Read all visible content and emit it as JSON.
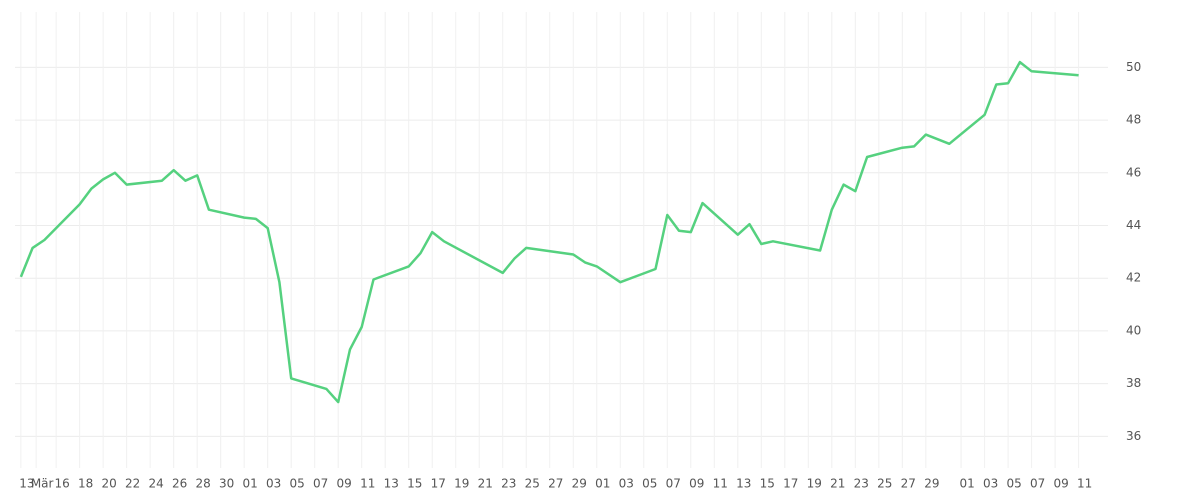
{
  "chart_data": {
    "type": "line",
    "x": [
      0,
      1,
      2,
      5,
      6,
      7,
      8,
      9,
      12,
      13,
      14,
      15,
      16,
      19,
      20,
      21,
      22,
      23,
      26,
      27,
      28,
      29,
      30,
      33,
      34,
      35,
      36,
      41,
      42,
      43,
      47,
      48,
      49,
      51,
      54,
      55,
      56,
      57,
      58,
      61,
      62,
      63,
      64,
      68,
      69,
      70,
      71,
      72,
      75,
      76,
      77,
      79,
      82,
      83,
      84,
      85,
      86,
      90
    ],
    "series": [
      {
        "color": "#55d17f",
        "values": [
          42.05,
          43.15,
          43.45,
          44.8,
          45.4,
          45.75,
          46.0,
          45.55,
          45.7,
          46.1,
          45.7,
          45.9,
          44.6,
          44.3,
          44.25,
          43.9,
          41.85,
          38.2,
          37.8,
          37.3,
          39.3,
          40.15,
          41.95,
          42.45,
          42.95,
          43.75,
          43.4,
          42.2,
          42.75,
          43.15,
          42.9,
          42.6,
          42.45,
          41.85,
          42.35,
          44.4,
          43.8,
          43.75,
          44.85,
          43.65,
          44.05,
          43.3,
          43.4,
          43.05,
          44.6,
          45.55,
          45.3,
          46.6,
          46.95,
          47.0,
          47.45,
          47.1,
          48.2,
          49.35,
          49.4,
          50.2,
          49.85,
          49.7
        ]
      }
    ],
    "xlim": [
      -0.5,
      92.5
    ],
    "xticks": [
      {
        "value": 0,
        "label": "13"
      },
      {
        "value": 1.3,
        "label": "Mär"
      },
      {
        "value": 3,
        "label": "16"
      },
      {
        "value": 5,
        "label": "18"
      },
      {
        "value": 7,
        "label": "20"
      },
      {
        "value": 9,
        "label": "22"
      },
      {
        "value": 11,
        "label": "24"
      },
      {
        "value": 13,
        "label": "26"
      },
      {
        "value": 15,
        "label": "28"
      },
      {
        "value": 17,
        "label": "30"
      },
      {
        "value": 19,
        "label": "01"
      },
      {
        "value": 21,
        "label": "03"
      },
      {
        "value": 23,
        "label": "05"
      },
      {
        "value": 25,
        "label": "07"
      },
      {
        "value": 27,
        "label": "09"
      },
      {
        "value": 29,
        "label": "11"
      },
      {
        "value": 31,
        "label": "13"
      },
      {
        "value": 33,
        "label": "15"
      },
      {
        "value": 35,
        "label": "17"
      },
      {
        "value": 37,
        "label": "19"
      },
      {
        "value": 39,
        "label": "21"
      },
      {
        "value": 41,
        "label": "23"
      },
      {
        "value": 43,
        "label": "25"
      },
      {
        "value": 45,
        "label": "27"
      },
      {
        "value": 47,
        "label": "29"
      },
      {
        "value": 49,
        "label": "01"
      },
      {
        "value": 51,
        "label": "03"
      },
      {
        "value": 53,
        "label": "05"
      },
      {
        "value": 55,
        "label": "07"
      },
      {
        "value": 57,
        "label": "09"
      },
      {
        "value": 59,
        "label": "11"
      },
      {
        "value": 61,
        "label": "13"
      },
      {
        "value": 63,
        "label": "15"
      },
      {
        "value": 65,
        "label": "17"
      },
      {
        "value": 67,
        "label": "19"
      },
      {
        "value": 69,
        "label": "21"
      },
      {
        "value": 71,
        "label": "23"
      },
      {
        "value": 73,
        "label": "25"
      },
      {
        "value": 75,
        "label": "27"
      },
      {
        "value": 77,
        "label": "29"
      },
      {
        "value": 80,
        "label": "01"
      },
      {
        "value": 82,
        "label": "03"
      },
      {
        "value": 84,
        "label": "05"
      },
      {
        "value": 86,
        "label": "07"
      },
      {
        "value": 88,
        "label": "09"
      },
      {
        "value": 90,
        "label": "11"
      }
    ],
    "ylim": [
      34.8,
      52.1
    ],
    "yticks": [
      36,
      38,
      40,
      42,
      44,
      46,
      48,
      50
    ],
    "grid": true
  }
}
